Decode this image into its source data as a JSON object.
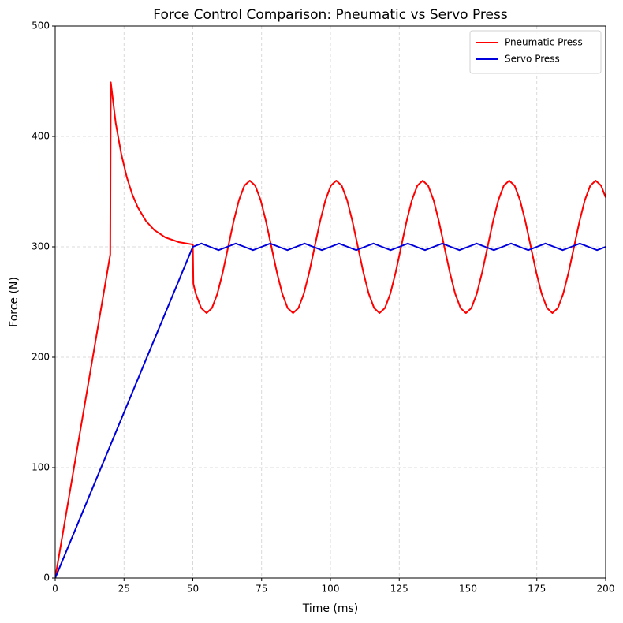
{
  "chart_data": {
    "type": "line",
    "title": "Force Control Comparison: Pneumatic vs Servo Press",
    "x_label": "Time (ms)",
    "y_label": "Force (N)",
    "xlim": [
      0,
      200
    ],
    "ylim": [
      0,
      500
    ],
    "xticks": [
      0,
      25,
      50,
      75,
      100,
      125,
      150,
      175,
      200
    ],
    "yticks": [
      0,
      100,
      200,
      300,
      400,
      500
    ],
    "grid": true,
    "legend": "upper right",
    "series": [
      {
        "name": "Pneumatic Press",
        "color": "#ff0000",
        "x": [
          0,
          20,
          20.2,
          22,
          24,
          26,
          28,
          30,
          33,
          36,
          40,
          45,
          50,
          50.2,
          51.07,
          53.04,
          55.0,
          56.96,
          58.93,
          60.89,
          62.85,
          64.82,
          66.78,
          68.74,
          70.71,
          72.67,
          74.64,
          76.6,
          78.56,
          80.53,
          82.49,
          84.45,
          86.42,
          88.38,
          90.34,
          92.31,
          94.27,
          96.23,
          98.2,
          100.16,
          102.12,
          104.09,
          106.05,
          108.01,
          109.98,
          111.94,
          113.91,
          115.87,
          117.83,
          119.8,
          121.76,
          123.72,
          125.69,
          127.65,
          129.61,
          131.58,
          133.54,
          135.5,
          137.47,
          139.43,
          141.39,
          143.36,
          145.32,
          147.28,
          149.25,
          151.21,
          153.18,
          155.14,
          157.1,
          159.07,
          161.03,
          162.99,
          164.96,
          166.92,
          168.88,
          170.85,
          172.81,
          174.77,
          176.74,
          178.7,
          180.66,
          182.63,
          184.59,
          186.55,
          188.52,
          190.48,
          192.45,
          194.41,
          196.37,
          198.34,
          200
        ],
        "values": [
          0,
          293,
          449,
          411.9,
          384.2,
          363.2,
          347.5,
          335.8,
          323.3,
          315.2,
          308.5,
          304.2,
          302.1,
          266.5,
          257.57,
          244.57,
          240,
          244.57,
          257.57,
          277.04,
          300,
          322.96,
          342.43,
          355.43,
          360,
          355.43,
          342.43,
          322.96,
          300,
          277.04,
          257.57,
          244.57,
          240,
          244.57,
          257.57,
          277.04,
          300,
          322.96,
          342.43,
          355.43,
          360,
          355.43,
          342.43,
          322.96,
          300,
          277.04,
          257.57,
          244.57,
          240,
          244.57,
          257.57,
          277.04,
          300,
          322.96,
          342.43,
          355.43,
          360,
          355.43,
          342.43,
          322.96,
          300,
          277.04,
          257.57,
          244.57,
          240,
          244.57,
          257.57,
          277.04,
          300,
          322.96,
          342.43,
          355.43,
          360,
          355.43,
          342.43,
          322.96,
          300,
          277.04,
          257.57,
          244.57,
          240,
          244.57,
          257.57,
          277.04,
          300,
          322.96,
          342.43,
          355.43,
          360,
          355.43,
          344.8
        ]
      },
      {
        "name": "Servo Press",
        "color": "#0000dd",
        "x": [
          0,
          50,
          53.125,
          56.25,
          59.375,
          62.5,
          65.625,
          68.75,
          71.875,
          75,
          78.125,
          81.25,
          84.375,
          87.5,
          90.625,
          93.75,
          96.875,
          100,
          103.125,
          106.25,
          109.375,
          112.5,
          115.625,
          118.75,
          121.875,
          125,
          128.125,
          131.25,
          134.375,
          137.5,
          140.625,
          143.75,
          146.875,
          150,
          153.125,
          156.25,
          159.375,
          162.5,
          165.625,
          168.75,
          171.875,
          175,
          178.125,
          181.25,
          184.375,
          187.5,
          190.625,
          193.75,
          196.875,
          200
        ],
        "values": [
          0,
          300,
          303,
          300,
          297,
          300,
          303,
          300,
          297,
          300,
          303,
          300,
          297,
          300,
          303,
          300,
          297,
          300,
          303,
          300,
          297,
          300,
          303,
          300,
          297,
          300,
          303,
          300,
          297,
          300,
          303,
          300,
          297,
          300,
          303,
          300,
          297,
          300,
          303,
          300,
          297,
          300,
          303,
          300,
          297,
          300,
          303,
          300,
          297,
          300
        ]
      }
    ]
  }
}
